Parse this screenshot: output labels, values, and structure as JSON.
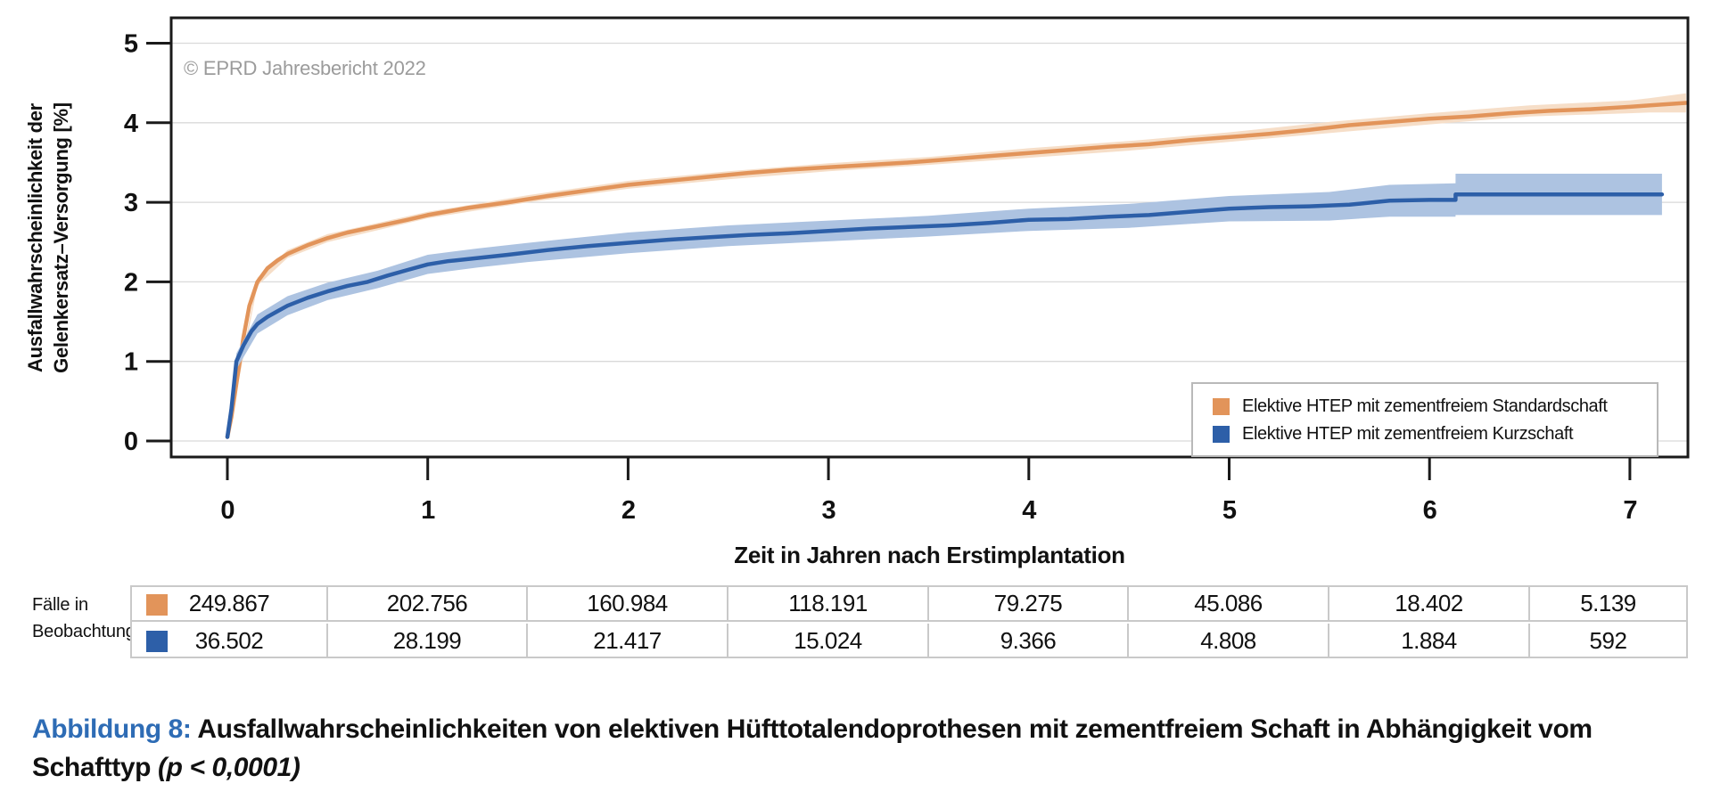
{
  "figure": {
    "copyright": "© EPRD Jahresbericht 2022",
    "y_axis_label_line1": "Ausfallwahrscheinlichkeit der",
    "y_axis_label_line2": "Gelenkersatz–Versorgung [%]",
    "x_axis_label": "Zeit in Jahren nach Erstimplantation"
  },
  "legend": {
    "items": [
      {
        "label": "Elektive HTEP mit zementfreiem Standardschaft",
        "color": "#E2945A"
      },
      {
        "label": "Elektive HTEP mit zementfreiem Kurzschaft",
        "color": "#2D5FA8"
      }
    ]
  },
  "table": {
    "row_header_line1": "Fälle in",
    "row_header_line2": "Beobachtung",
    "rows": [
      {
        "series": "Elektive HTEP mit zementfreiem Standardschaft",
        "color": "#E2945A",
        "values": [
          "249.867",
          "202.756",
          "160.984",
          "118.191",
          "79.275",
          "45.086",
          "18.402",
          "5.139"
        ]
      },
      {
        "series": "Elektive HTEP mit zementfreiem Kurzschaft",
        "color": "#2D5FA8",
        "values": [
          "36.502",
          "28.199",
          "21.417",
          "15.024",
          "9.366",
          "4.808",
          "1.884",
          "592"
        ]
      }
    ]
  },
  "caption": {
    "prefix": "Abbildung 8:",
    "prefix_color": "#2E6CB5",
    "text": " Ausfallwahrscheinlichkeiten von elektiven Hüfttotalendoprothesen mit zementfreiem Schaft in Abhängigkeit vom Schafttyp ",
    "stat": "(p < 0,0001)"
  },
  "chart_data": {
    "type": "line",
    "title": "",
    "xlabel": "Zeit in Jahren nach Erstimplantation",
    "ylabel": "Ausfallwahrscheinlichkeit der Gelenkersatz–Versorgung [%]",
    "xlim": [
      -0.28,
      7.29
    ],
    "ylim": [
      -0.2,
      5.32
    ],
    "x_ticks": [
      0,
      1,
      2,
      3,
      4,
      5,
      6,
      7
    ],
    "y_ticks": [
      0,
      1,
      2,
      3,
      4,
      5
    ],
    "grid": "horizontal",
    "grid_color": "#d9d9d9",
    "legend_position": "bottom-right",
    "annotation": "© EPRD Jahresbericht 2022",
    "series": [
      {
        "name": "Elektive HTEP mit zementfreiem Standardschaft",
        "color": "#E2945A",
        "band_color": "#F6DEC8",
        "points": [
          [
            0,
            0.05
          ],
          [
            0.02,
            0.3
          ],
          [
            0.05,
            0.8
          ],
          [
            0.08,
            1.3
          ],
          [
            0.11,
            1.7
          ],
          [
            0.15,
            2.0
          ],
          [
            0.2,
            2.17
          ],
          [
            0.25,
            2.27
          ],
          [
            0.3,
            2.35
          ],
          [
            0.4,
            2.46
          ],
          [
            0.5,
            2.55
          ],
          [
            0.6,
            2.62
          ],
          [
            0.75,
            2.7
          ],
          [
            0.9,
            2.78
          ],
          [
            1.0,
            2.84
          ],
          [
            1.2,
            2.93
          ],
          [
            1.4,
            3.0
          ],
          [
            1.6,
            3.08
          ],
          [
            1.8,
            3.15
          ],
          [
            2.0,
            3.22
          ],
          [
            2.2,
            3.27
          ],
          [
            2.4,
            3.32
          ],
          [
            2.6,
            3.37
          ],
          [
            2.8,
            3.41
          ],
          [
            3.0,
            3.44
          ],
          [
            3.2,
            3.47
          ],
          [
            3.4,
            3.5
          ],
          [
            3.6,
            3.54
          ],
          [
            3.8,
            3.58
          ],
          [
            4.0,
            3.62
          ],
          [
            4.2,
            3.66
          ],
          [
            4.4,
            3.7
          ],
          [
            4.6,
            3.73
          ],
          [
            4.8,
            3.78
          ],
          [
            5.0,
            3.82
          ],
          [
            5.2,
            3.86
          ],
          [
            5.4,
            3.91
          ],
          [
            5.6,
            3.97
          ],
          [
            5.8,
            4.01
          ],
          [
            6.0,
            4.05
          ],
          [
            6.2,
            4.08
          ],
          [
            6.4,
            4.12
          ],
          [
            6.6,
            4.15
          ],
          [
            6.8,
            4.17
          ],
          [
            7.0,
            4.2
          ],
          [
            7.1,
            4.22
          ],
          [
            7.28,
            4.25
          ]
        ],
        "band": [
          [
            0,
            0.03,
            0.07
          ],
          [
            0.15,
            1.95,
            2.05
          ],
          [
            0.3,
            2.3,
            2.4
          ],
          [
            0.5,
            2.5,
            2.6
          ],
          [
            1.0,
            2.8,
            2.88
          ],
          [
            1.5,
            3.0,
            3.09
          ],
          [
            2.0,
            3.17,
            3.27
          ],
          [
            2.5,
            3.29,
            3.39
          ],
          [
            3.0,
            3.39,
            3.49
          ],
          [
            3.5,
            3.47,
            3.57
          ],
          [
            4.0,
            3.56,
            3.68
          ],
          [
            4.5,
            3.65,
            3.77
          ],
          [
            5.0,
            3.76,
            3.88
          ],
          [
            5.5,
            3.87,
            4.01
          ],
          [
            6.0,
            3.98,
            4.12
          ],
          [
            6.5,
            4.08,
            4.22
          ],
          [
            7.0,
            4.12,
            4.28
          ],
          [
            7.1,
            4.13,
            4.31
          ],
          [
            7.28,
            4.13,
            4.37
          ]
        ]
      },
      {
        "name": "Elektive HTEP mit zementfreiem Kurzschaft",
        "color": "#2D5FA8",
        "band_color": "#ADC3E1",
        "points": [
          [
            0,
            0.05
          ],
          [
            0.02,
            0.4
          ],
          [
            0.045,
            1.0
          ],
          [
            0.08,
            1.2
          ],
          [
            0.12,
            1.38
          ],
          [
            0.15,
            1.47
          ],
          [
            0.2,
            1.56
          ],
          [
            0.25,
            1.63
          ],
          [
            0.3,
            1.7
          ],
          [
            0.4,
            1.8
          ],
          [
            0.5,
            1.88
          ],
          [
            0.6,
            1.95
          ],
          [
            0.7,
            2.0
          ],
          [
            0.8,
            2.08
          ],
          [
            0.9,
            2.15
          ],
          [
            1.0,
            2.22
          ],
          [
            1.1,
            2.26
          ],
          [
            1.25,
            2.3
          ],
          [
            1.4,
            2.34
          ],
          [
            1.6,
            2.4
          ],
          [
            1.8,
            2.45
          ],
          [
            2.0,
            2.49
          ],
          [
            2.2,
            2.53
          ],
          [
            2.4,
            2.56
          ],
          [
            2.6,
            2.59
          ],
          [
            2.8,
            2.61
          ],
          [
            3.0,
            2.64
          ],
          [
            3.2,
            2.67
          ],
          [
            3.4,
            2.69
          ],
          [
            3.6,
            2.71
          ],
          [
            3.8,
            2.74
          ],
          [
            4.0,
            2.78
          ],
          [
            4.2,
            2.79
          ],
          [
            4.4,
            2.82
          ],
          [
            4.6,
            2.84
          ],
          [
            4.8,
            2.88
          ],
          [
            5.0,
            2.92
          ],
          [
            5.2,
            2.94
          ],
          [
            5.4,
            2.95
          ],
          [
            5.6,
            2.97
          ],
          [
            5.8,
            3.02
          ],
          [
            6.0,
            3.03
          ],
          [
            6.13,
            3.03
          ],
          [
            6.13,
            3.1
          ],
          [
            7.16,
            3.1
          ]
        ],
        "band": [
          [
            0,
            0.03,
            0.07
          ],
          [
            0.045,
            0.9,
            1.1
          ],
          [
            0.15,
            1.35,
            1.59
          ],
          [
            0.3,
            1.58,
            1.82
          ],
          [
            0.5,
            1.77,
            1.99
          ],
          [
            0.75,
            1.92,
            2.14
          ],
          [
            1.0,
            2.1,
            2.34
          ],
          [
            1.25,
            2.18,
            2.42
          ],
          [
            1.5,
            2.25,
            2.49
          ],
          [
            2.0,
            2.36,
            2.62
          ],
          [
            2.5,
            2.45,
            2.71
          ],
          [
            3.0,
            2.51,
            2.77
          ],
          [
            3.5,
            2.57,
            2.83
          ],
          [
            4.0,
            2.64,
            2.92
          ],
          [
            4.5,
            2.68,
            2.98
          ],
          [
            5.0,
            2.76,
            3.08
          ],
          [
            5.5,
            2.77,
            3.13
          ],
          [
            5.8,
            2.82,
            3.22
          ],
          [
            6.13,
            2.82,
            3.24
          ],
          [
            6.13,
            2.84,
            3.36
          ],
          [
            7.16,
            2.84,
            3.36
          ]
        ]
      }
    ],
    "cases_at_risk": {
      "label": "Fälle in Beobachtung",
      "years": [
        0,
        1,
        2,
        3,
        4,
        5,
        6,
        7
      ],
      "series": [
        {
          "name": "Elektive HTEP mit zementfreiem Standardschaft",
          "counts": [
            249867,
            202756,
            160984,
            118191,
            79275,
            45086,
            18402,
            5139
          ]
        },
        {
          "name": "Elektive HTEP mit zementfreiem Kurzschaft",
          "counts": [
            36502,
            28199,
            21417,
            15024,
            9366,
            4808,
            1884,
            592
          ]
        }
      ]
    }
  }
}
